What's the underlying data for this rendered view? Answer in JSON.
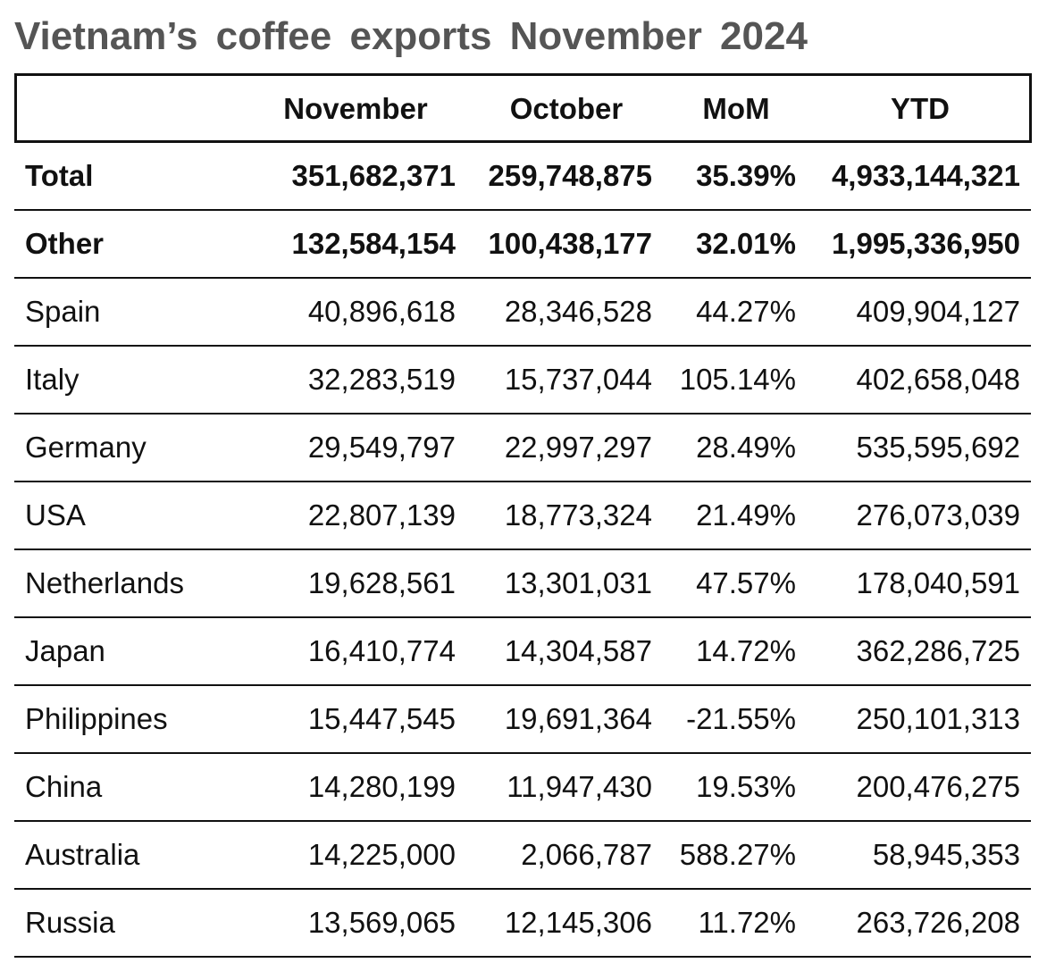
{
  "title": "Vietnam’s coffee exports November 2024",
  "table": {
    "header": [
      "November",
      "October",
      "MoM",
      "YTD"
    ],
    "rows": [
      [
        "Total",
        "351,682,371",
        "259,748,875",
        "35.39%",
        "4,933,144,321"
      ],
      [
        "Other",
        "132,584,154",
        "100,438,177",
        "32.01%",
        "1,995,336,950"
      ],
      [
        "Spain",
        "40,896,618",
        "28,346,528",
        "44.27%",
        "409,904,127"
      ],
      [
        "Italy",
        "32,283,519",
        "15,737,044",
        "105.14%",
        "402,658,048"
      ],
      [
        "Germany",
        "29,549,797",
        "22,997,297",
        "28.49%",
        "535,595,692"
      ],
      [
        "USA",
        "22,807,139",
        "18,773,324",
        "21.49%",
        "276,073,039"
      ],
      [
        "Netherlands",
        "19,628,561",
        "13,301,031",
        "47.57%",
        "178,040,591"
      ],
      [
        "Japan",
        "16,410,774",
        "14,304,587",
        "14.72%",
        "362,286,725"
      ],
      [
        "Philippines",
        "15,447,545",
        "19,691,364",
        "-21.55%",
        "250,101,313"
      ],
      [
        "China",
        "14,280,199",
        "11,947,430",
        "19.53%",
        "200,476,275"
      ],
      [
        "Australia",
        "14,225,000",
        "2,066,787",
        "588.27%",
        "58,945,353"
      ],
      [
        "Russia",
        "13,569,065",
        "12,145,306",
        "11.72%",
        "263,726,208"
      ]
    ]
  }
}
